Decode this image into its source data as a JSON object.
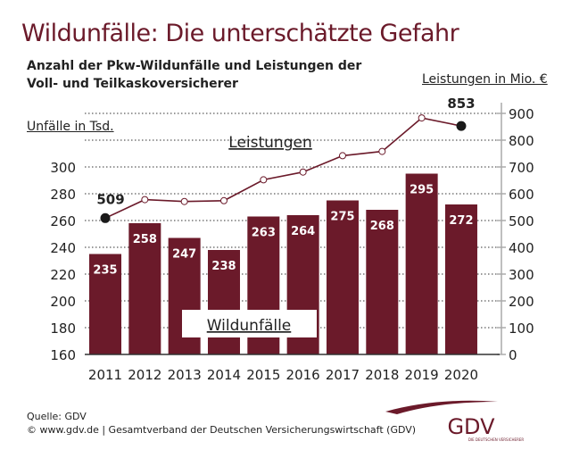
{
  "title": "Wildunfälle: Die unterschätzte Gefahr",
  "subtitle_line1": "Anzahl der Pkw-Wildunfälle und Leistungen der",
  "subtitle_line2": "Voll- und Teilkaskoversicherer",
  "footer": {
    "source": "Quelle: GDV",
    "copyright": "© www.gdv.de | Gesamtverband der Deutschen Versicherungswirtschaft (GDV)"
  },
  "logo": {
    "text": "GDV",
    "tagline": "DIE DEUTSCHEN VERSICHERER"
  },
  "colors": {
    "bar": "#6b1a2a",
    "line": "#6b1a2a",
    "title": "#6b1a2a"
  },
  "chart_data": {
    "type": "bar+line",
    "categories": [
      "2011",
      "2012",
      "2013",
      "2014",
      "2015",
      "2016",
      "2017",
      "2018",
      "2019",
      "2020"
    ],
    "series": [
      {
        "name": "Wildunfälle",
        "type": "bar",
        "axis": "left",
        "values": [
          235,
          258,
          247,
          238,
          263,
          264,
          275,
          268,
          295,
          272
        ]
      },
      {
        "name": "Leistungen",
        "type": "line",
        "axis": "right",
        "values": [
          509,
          578,
          571,
          574,
          652,
          681,
          742,
          758,
          883,
          853
        ],
        "labeled": {
          "2011": "509",
          "2020": "853"
        }
      }
    ],
    "left_axis": {
      "label": "Unfälle in Tsd.",
      "range": [
        160,
        300
      ],
      "ticks": [
        160,
        180,
        200,
        220,
        240,
        260,
        280,
        300
      ]
    },
    "right_axis": {
      "label": "Leistungen in Mio. €",
      "range": [
        0,
        900
      ],
      "ticks": [
        0,
        100,
        200,
        300,
        400,
        500,
        600,
        700,
        800,
        900
      ]
    },
    "grid": "dotted horizontal"
  }
}
